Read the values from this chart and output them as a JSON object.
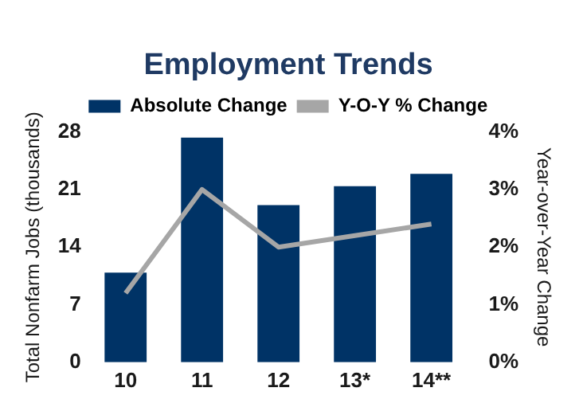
{
  "chart_data": {
    "type": "bar",
    "title": "Employment Trends",
    "categories": [
      "10",
      "11",
      "12",
      "13*",
      "14**"
    ],
    "series": [
      {
        "name": "Absolute Change",
        "color": "#003366",
        "values": [
          10.9,
          27.3,
          19.1,
          21.4,
          22.9
        ]
      },
      {
        "name": "Y-O-Y % Change",
        "type": "line",
        "axis": "y2",
        "color": "#a6a6a6",
        "values": [
          1.2,
          3.0,
          2.0,
          2.2,
          2.4
        ],
        "marker": "none"
      }
    ],
    "ylabel": "Total Nonfarm Jobs (thousands)",
    "y2label": "Year-over-Year Change",
    "ylim": [
      0,
      28
    ],
    "yticks": [
      0,
      7,
      14,
      21,
      28
    ],
    "y2lim": [
      0,
      4
    ],
    "y2ticks": [
      {
        "value": 0,
        "label": "0%"
      },
      {
        "value": 1,
        "label": "1%"
      },
      {
        "value": 2,
        "label": "2%"
      },
      {
        "value": 3,
        "label": "3%"
      },
      {
        "value": 4,
        "label": "4%"
      }
    ],
    "legend": "top",
    "grid": false
  }
}
